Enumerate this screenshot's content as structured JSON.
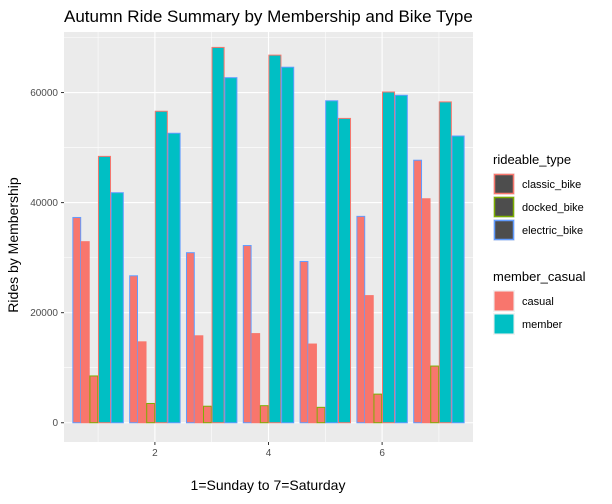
{
  "chart_data": {
    "type": "bar",
    "title": "Autumn Ride Summary by Membership and Bike Type",
    "xlabel": "1=Sunday to 7=Saturday",
    "ylabel": "Rides by Membership",
    "xlim": [
      0.4,
      7.6
    ],
    "ylim": [
      -3500,
      71000
    ],
    "x_ticks": [
      2,
      4,
      6
    ],
    "y_ticks": [
      0,
      20000,
      40000,
      60000
    ],
    "y_tick_labels": [
      "0",
      "20000",
      "40000",
      "60000"
    ],
    "x_tick_labels": [
      "2",
      "4",
      "6"
    ],
    "grid": true,
    "legend_position": "right",
    "x": [
      1,
      2,
      3,
      4,
      5,
      6,
      7
    ],
    "legends": [
      {
        "title": "rideable_type",
        "entries": [
          {
            "label": "classic_bike",
            "color": "#F8766D"
          },
          {
            "label": "docked_bike",
            "color": "#7CAE00"
          },
          {
            "label": "electric_bike",
            "color": "#619CFF"
          }
        ]
      },
      {
        "title": "member_casual",
        "entries": [
          {
            "label": "casual",
            "color": "#F8766D"
          },
          {
            "label": "member",
            "color": "#00BFC4"
          }
        ]
      }
    ],
    "series": [
      {
        "member_casual": "casual",
        "rideable_type": "classic_bike",
        "values": [
          32900,
          14700,
          15800,
          16200,
          14300,
          23100,
          40700
        ]
      },
      {
        "member_casual": "casual",
        "rideable_type": "docked_bike",
        "values": [
          8500,
          3500,
          3000,
          3100,
          2800,
          5200,
          10300
        ]
      },
      {
        "member_casual": "casual",
        "rideable_type": "electric_bike",
        "values": [
          37300,
          26700,
          30900,
          32200,
          29300,
          37500,
          47700
        ]
      },
      {
        "member_casual": "member",
        "rideable_type": "classic_bike",
        "values": [
          48400,
          56600,
          68200,
          66800,
          55300,
          60100,
          58300
        ]
      },
      {
        "member_casual": "member",
        "rideable_type": "electric_bike",
        "values": [
          41800,
          52600,
          62700,
          64600,
          58500,
          59500,
          52100
        ]
      }
    ]
  }
}
